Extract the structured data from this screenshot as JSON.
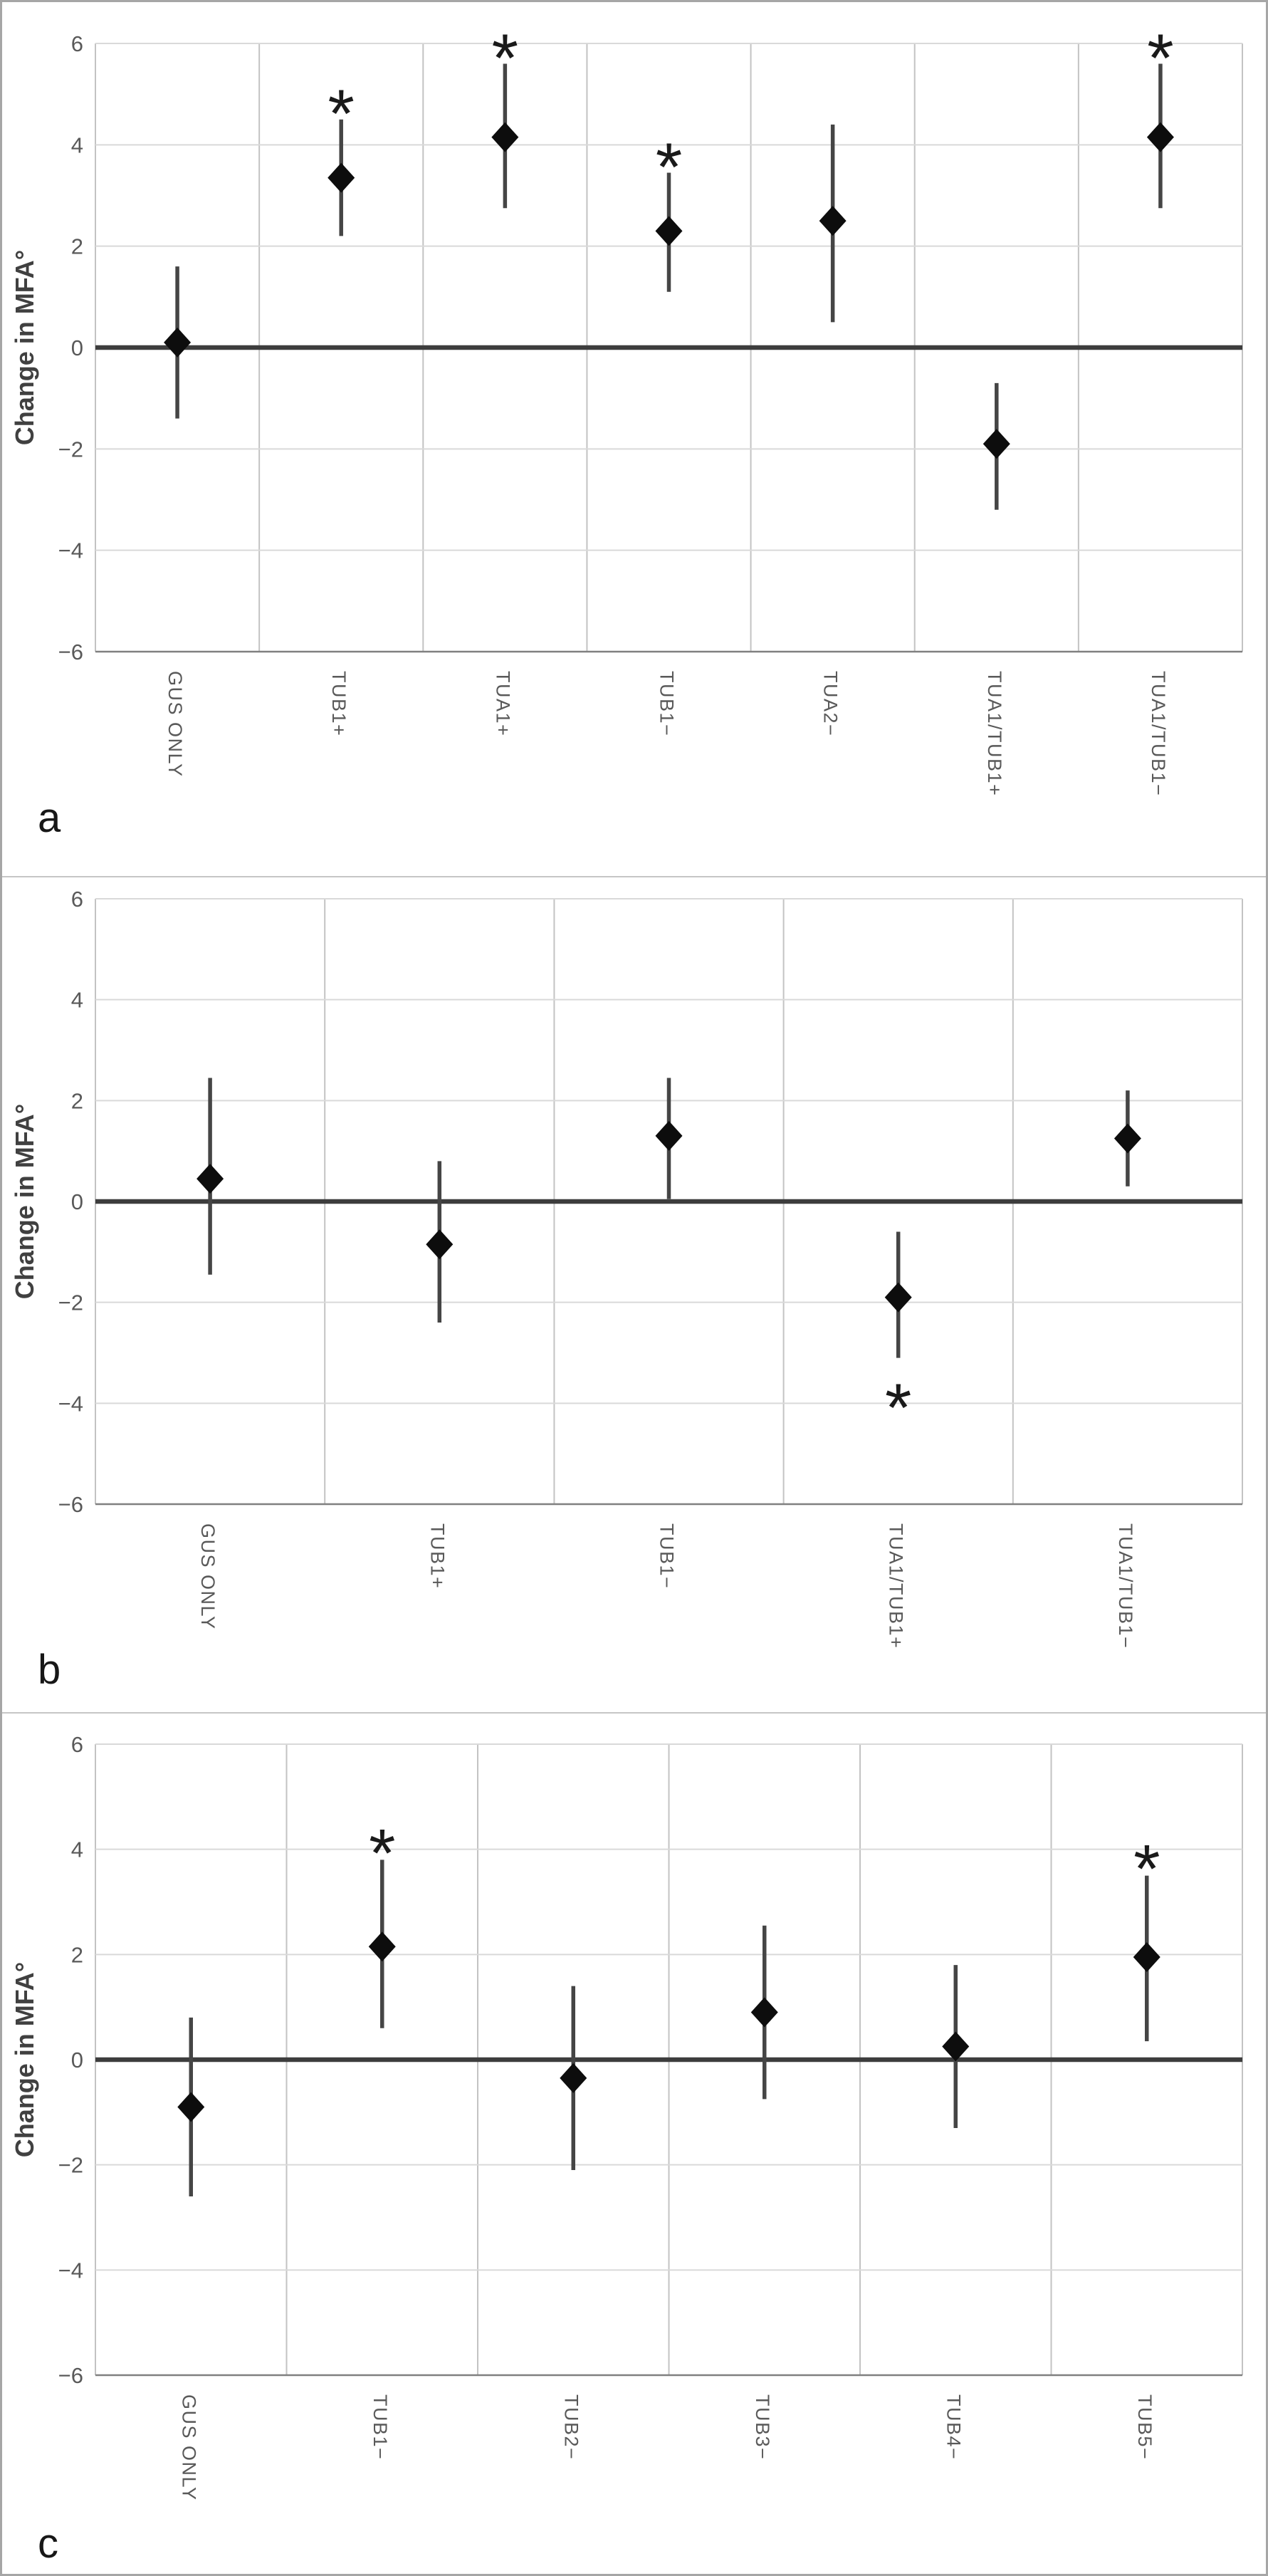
{
  "figure": {
    "background": "#ffffff",
    "outer_border_color": "#a6a6a6",
    "panel_border_color": "#c6c6c6",
    "panel_letters": [
      "a",
      "b",
      "c"
    ]
  },
  "style": {
    "grid_h": "#d9d9d9",
    "grid_v": "#c3c3c3",
    "zero_line": "#3d3d3d",
    "axis_line": "#808080",
    "error_bar": "#454545",
    "marker": "#0d0d0d",
    "asterisk": "#1a1a1a",
    "tick_text": "#595959",
    "category_text": "#595959",
    "ylabel_text": "#404040",
    "letter_text": "#171717"
  },
  "chart_data": [
    {
      "type": "scatter",
      "letter": "a",
      "ylabel": "Change in MFA°",
      "ylim": [
        -6,
        6
      ],
      "yticks": [
        "6",
        "4",
        "2",
        "0",
        "−2",
        "−4",
        "−6"
      ],
      "ytick_values": [
        6,
        4,
        2,
        0,
        -2,
        -4,
        -6
      ],
      "grid": true,
      "legend_position": "none",
      "marker_shape": "diamond",
      "categories": [
        "GUS ONLY",
        "TUB1+",
        "TUA1+",
        "TUB1−",
        "TUA2−",
        "TUA1/TUB1+",
        "TUA1/TUB1−"
      ],
      "series": [
        {
          "name": "mean change with error bars",
          "points": [
            {
              "y": 0.1,
              "lo": -1.4,
              "hi": 1.6,
              "significant": false,
              "asterisk": "none"
            },
            {
              "y": 3.35,
              "lo": 2.2,
              "hi": 4.5,
              "significant": true,
              "asterisk": "above"
            },
            {
              "y": 4.15,
              "lo": 2.75,
              "hi": 5.6,
              "significant": true,
              "asterisk": "above"
            },
            {
              "y": 2.3,
              "lo": 1.1,
              "hi": 3.45,
              "significant": true,
              "asterisk": "above"
            },
            {
              "y": 2.5,
              "lo": 0.5,
              "hi": 4.4,
              "significant": false,
              "asterisk": "none"
            },
            {
              "y": -1.9,
              "lo": -3.2,
              "hi": -0.7,
              "significant": false,
              "asterisk": "none"
            },
            {
              "y": 4.15,
              "lo": 2.75,
              "hi": 5.6,
              "significant": true,
              "asterisk": "above"
            }
          ]
        }
      ]
    },
    {
      "type": "scatter",
      "letter": "b",
      "ylabel": "Change in MFA°",
      "ylim": [
        -6,
        6
      ],
      "yticks": [
        "6",
        "4",
        "2",
        "0",
        "−2",
        "−4",
        "−6"
      ],
      "ytick_values": [
        6,
        4,
        2,
        0,
        -2,
        -4,
        -6
      ],
      "grid": true,
      "legend_position": "none",
      "marker_shape": "diamond",
      "categories": [
        "GUS ONLY",
        "TUB1+",
        "TUB1−",
        "TUA1/TUB1+",
        "TUA1/TUB1−"
      ],
      "series": [
        {
          "name": "mean change with error bars",
          "points": [
            {
              "y": 0.45,
              "lo": -1.45,
              "hi": 2.45,
              "significant": false,
              "asterisk": "none"
            },
            {
              "y": -0.85,
              "lo": -2.4,
              "hi": 0.8,
              "significant": false,
              "asterisk": "none"
            },
            {
              "y": 1.3,
              "lo": 0.05,
              "hi": 2.45,
              "significant": false,
              "asterisk": "none"
            },
            {
              "y": -1.9,
              "lo": -3.1,
              "hi": -0.6,
              "significant": true,
              "asterisk": "below"
            },
            {
              "y": 1.25,
              "lo": 0.3,
              "hi": 2.2,
              "significant": false,
              "asterisk": "none"
            }
          ]
        }
      ]
    },
    {
      "type": "scatter",
      "letter": "c",
      "ylabel": "Change in MFA°",
      "ylim": [
        -6,
        6
      ],
      "yticks": [
        "6",
        "4",
        "2",
        "0",
        "−2",
        "−4",
        "−6"
      ],
      "ytick_values": [
        6,
        4,
        2,
        0,
        -2,
        -4,
        -6
      ],
      "grid": true,
      "legend_position": "none",
      "marker_shape": "diamond",
      "categories": [
        "GUS ONLY",
        "TUB1−",
        "TUB2−",
        "TUB3−",
        "TUB4−",
        "TUB5−"
      ],
      "series": [
        {
          "name": "mean change with error bars",
          "points": [
            {
              "y": -0.9,
              "lo": -2.6,
              "hi": 0.8,
              "significant": false,
              "asterisk": "none"
            },
            {
              "y": 2.15,
              "lo": 0.6,
              "hi": 3.8,
              "significant": true,
              "asterisk": "above"
            },
            {
              "y": -0.35,
              "lo": -2.1,
              "hi": 1.4,
              "significant": false,
              "asterisk": "none"
            },
            {
              "y": 0.9,
              "lo": -0.75,
              "hi": 2.55,
              "significant": false,
              "asterisk": "none"
            },
            {
              "y": 0.25,
              "lo": -1.3,
              "hi": 1.8,
              "significant": false,
              "asterisk": "none"
            },
            {
              "y": 1.95,
              "lo": 0.35,
              "hi": 3.5,
              "significant": true,
              "asterisk": "above"
            }
          ]
        }
      ]
    }
  ]
}
